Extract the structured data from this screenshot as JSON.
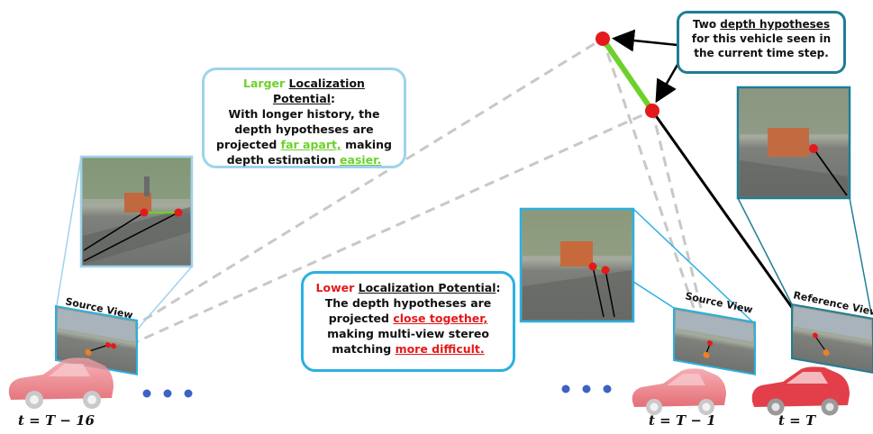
{
  "callouts": {
    "larger": {
      "title_word": "Larger",
      "title_rest": "Localization Potential",
      "colon": ":",
      "line1": "With longer history, the",
      "line2": "depth hypotheses are",
      "line3_pre": "projected ",
      "line3_hl": "far apart,",
      "line3_post": " making",
      "line4_pre": "depth estimation ",
      "line4_hl": "easier."
    },
    "lower": {
      "title_word": "Lower",
      "title_rest": "Localization Potential",
      "colon": ":",
      "line1": "The depth hypotheses are",
      "line2_pre": "projected ",
      "line2_hl": "close together,",
      "line3": "making multi-view stereo",
      "line4_pre": "matching ",
      "line4_hl": "more difficult."
    },
    "two": {
      "line1_pre": "Two ",
      "line1_hl": "depth hypotheses",
      "line2": "for this vehicle seen in",
      "line3": "the current time step."
    }
  },
  "view_labels": {
    "source_left": "Source View",
    "source_right": "Source View",
    "reference": "Reference View"
  },
  "time_labels": {
    "t16": "t = T − 16",
    "t1": "t = T − 1",
    "t0": "t = T"
  },
  "colors": {
    "green": "#6cd12a",
    "red": "#e4191b",
    "light_blue": "#9ed3ec",
    "blue": "#2bb0e2",
    "teal": "#1f7d96",
    "dot_blue": "#3b63c4",
    "dashed_gray": "#c8c8c8"
  }
}
